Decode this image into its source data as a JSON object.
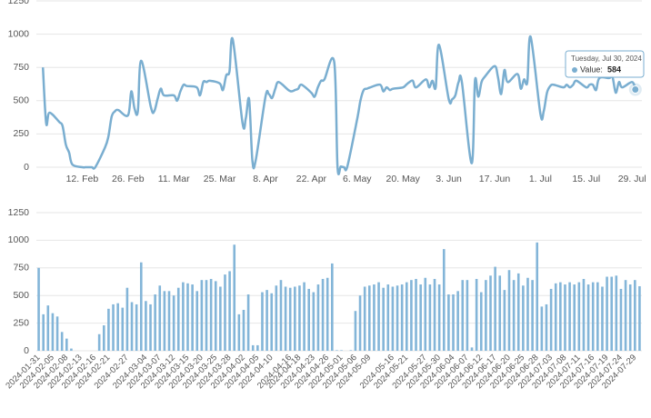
{
  "chart_data": [
    {
      "type": "line",
      "x": [
        "2024-01-31",
        "2024-02-01",
        "2024-02-02",
        "2024-02-05",
        "2024-02-06",
        "2024-02-07",
        "2024-02-08",
        "2024-02-09",
        "2024-02-12",
        "2024-02-13",
        "2024-02-14",
        "2024-02-15",
        "2024-02-16",
        "2024-02-19",
        "2024-02-20",
        "2024-02-21",
        "2024-02-22",
        "2024-02-23",
        "2024-02-26",
        "2024-02-27",
        "2024-02-28",
        "2024-02-29",
        "2024-03-01",
        "2024-03-04",
        "2024-03-05",
        "2024-03-06",
        "2024-03-07",
        "2024-03-08",
        "2024-03-11",
        "2024-03-12",
        "2024-03-13",
        "2024-03-14",
        "2024-03-15",
        "2024-03-18",
        "2024-03-19",
        "2024-03-20",
        "2024-03-21",
        "2024-03-22",
        "2024-03-25",
        "2024-03-26",
        "2024-03-27",
        "2024-03-28",
        "2024-03-29",
        "2024-04-01",
        "2024-04-02",
        "2024-04-03",
        "2024-04-04",
        "2024-04-05",
        "2024-04-08",
        "2024-04-09",
        "2024-04-10",
        "2024-04-11",
        "2024-04-12",
        "2024-04-15",
        "2024-04-16",
        "2024-04-17",
        "2024-04-18",
        "2024-04-19",
        "2024-04-22",
        "2024-04-23",
        "2024-04-24",
        "2024-04-25",
        "2024-04-26",
        "2024-04-29",
        "2024-04-30",
        "2024-05-01",
        "2024-05-02",
        "2024-05-03",
        "2024-05-06",
        "2024-05-07",
        "2024-05-08",
        "2024-05-09",
        "2024-05-10",
        "2024-05-13",
        "2024-05-14",
        "2024-05-15",
        "2024-05-16",
        "2024-05-17",
        "2024-05-20",
        "2024-05-21",
        "2024-05-22",
        "2024-05-23",
        "2024-05-24",
        "2024-05-27",
        "2024-05-28",
        "2024-05-29",
        "2024-05-30",
        "2024-05-31",
        "2024-06-03",
        "2024-06-04",
        "2024-06-05",
        "2024-06-06",
        "2024-06-07",
        "2024-06-10",
        "2024-06-11",
        "2024-06-12",
        "2024-06-13",
        "2024-06-14",
        "2024-06-17",
        "2024-06-18",
        "2024-06-19",
        "2024-06-20",
        "2024-06-21",
        "2024-06-24",
        "2024-06-25",
        "2024-06-26",
        "2024-06-27",
        "2024-06-28",
        "2024-07-01",
        "2024-07-02",
        "2024-07-03",
        "2024-07-04",
        "2024-07-05",
        "2024-07-08",
        "2024-07-09",
        "2024-07-10",
        "2024-07-11",
        "2024-07-12",
        "2024-07-15",
        "2024-07-16",
        "2024-07-17",
        "2024-07-18",
        "2024-07-19",
        "2024-07-22",
        "2024-07-23",
        "2024-07-24",
        "2024-07-25",
        "2024-07-26",
        "2024-07-29",
        "2024-07-30"
      ],
      "series": [
        {
          "name": "Value",
          "color": "#7aaed0",
          "values": [
            750,
            330,
            410,
            340,
            310,
            170,
            110,
            20,
            0,
            0,
            0,
            0,
            0,
            150,
            230,
            380,
            420,
            430,
            390,
            570,
            440,
            420,
            800,
            450,
            420,
            510,
            590,
            540,
            540,
            500,
            570,
            620,
            610,
            600,
            540,
            640,
            640,
            650,
            630,
            580,
            690,
            720,
            960,
            330,
            370,
            510,
            50,
            50,
            530,
            550,
            520,
            590,
            640,
            580,
            570,
            580,
            590,
            620,
            560,
            530,
            600,
            650,
            660,
            790,
            5,
            5,
            0,
            5,
            360,
            500,
            580,
            590,
            600,
            620,
            570,
            600,
            580,
            590,
            600,
            620,
            640,
            650,
            600,
            660,
            600,
            650,
            600,
            920,
            510,
            510,
            540,
            640,
            640,
            30,
            650,
            530,
            640,
            680,
            760,
            680,
            550,
            730,
            640,
            700,
            590,
            660,
            640,
            980,
            400,
            420,
            560,
            610,
            620,
            600,
            620,
            600,
            620,
            650,
            600,
            620,
            620,
            580,
            670,
            670,
            680,
            560,
            640,
            600,
            640,
            584
          ]
        }
      ],
      "xlim": [
        "2024-01-29",
        "2024-08-01"
      ],
      "xticks": [
        {
          "value": "2024-02-12",
          "label": "12. Feb"
        },
        {
          "value": "2024-02-26",
          "label": "26. Feb"
        },
        {
          "value": "2024-03-11",
          "label": "11. Mar"
        },
        {
          "value": "2024-03-25",
          "label": "25. Mar"
        },
        {
          "value": "2024-04-08",
          "label": "8. Apr"
        },
        {
          "value": "2024-04-22",
          "label": "22. Apr"
        },
        {
          "value": "2024-05-06",
          "label": "6. May"
        },
        {
          "value": "2024-05-20",
          "label": "20. May"
        },
        {
          "value": "2024-06-03",
          "label": "3. Jun"
        },
        {
          "value": "2024-06-17",
          "label": "17. Jun"
        },
        {
          "value": "2024-07-01",
          "label": "1. Jul"
        },
        {
          "value": "2024-07-15",
          "label": "15. Jul"
        },
        {
          "value": "2024-07-29",
          "label": "29. Jul"
        }
      ],
      "ylim": [
        0,
        1250
      ],
      "yticks": [
        0,
        250,
        500,
        750,
        1000,
        1250
      ],
      "grid": true,
      "tooltip": {
        "title": "Tuesday, Jul 30, 2024",
        "label": "Value:"
      }
    },
    {
      "type": "bar",
      "categories": [
        "2024-01-31",
        null,
        null,
        "2024-02-05",
        null,
        null,
        "2024-02-08",
        null,
        null,
        "2024-02-13",
        null,
        null,
        "2024-02-16",
        null,
        null,
        "2024-02-21",
        null,
        null,
        null,
        "2024-02-27",
        null,
        null,
        null,
        "2024-03-04",
        null,
        null,
        "2024-03-07",
        null,
        null,
        "2024-03-12",
        null,
        null,
        "2024-03-15",
        null,
        null,
        "2024-03-20",
        null,
        null,
        "2024-03-25",
        null,
        null,
        "2024-03-28",
        null,
        null,
        "2024-04-02",
        null,
        null,
        "2024-04-05",
        null,
        null,
        "2024-04-10",
        null,
        null,
        null,
        "2024-04-16",
        null,
        "2024-04-18",
        null,
        null,
        "2024-04-23",
        null,
        null,
        "2024-04-26",
        null,
        null,
        "2024-05-01",
        null,
        null,
        "2024-05-06",
        null,
        null,
        "2024-05-09",
        null,
        null,
        null,
        null,
        "2024-05-16",
        null,
        null,
        "2024-05-21",
        null,
        null,
        null,
        "2024-05-27",
        null,
        null,
        "2024-05-30",
        null,
        null,
        "2024-06-04",
        null,
        null,
        "2024-06-07",
        null,
        null,
        "2024-06-12",
        null,
        null,
        "2024-06-17",
        null,
        null,
        "2024-06-20",
        null,
        null,
        "2024-06-25",
        null,
        null,
        "2024-06-28",
        null,
        null,
        "2024-07-03",
        null,
        null,
        "2024-07-08",
        null,
        null,
        "2024-07-11",
        null,
        null,
        "2024-07-16",
        null,
        null,
        "2024-07-19",
        null,
        null,
        "2024-07-24",
        null,
        null,
        "2024-07-29",
        null
      ],
      "values": [
        750,
        330,
        410,
        340,
        310,
        170,
        110,
        20,
        0,
        0,
        0,
        0,
        0,
        150,
        230,
        380,
        420,
        430,
        390,
        570,
        440,
        420,
        800,
        450,
        420,
        510,
        590,
        540,
        540,
        500,
        570,
        620,
        610,
        600,
        540,
        640,
        640,
        650,
        630,
        580,
        690,
        720,
        960,
        330,
        370,
        510,
        50,
        50,
        530,
        550,
        520,
        590,
        640,
        580,
        570,
        580,
        590,
        620,
        560,
        530,
        600,
        650,
        660,
        790,
        5,
        5,
        0,
        5,
        360,
        500,
        580,
        590,
        600,
        620,
        570,
        600,
        580,
        590,
        600,
        620,
        640,
        650,
        600,
        660,
        600,
        650,
        600,
        920,
        510,
        510,
        540,
        640,
        640,
        30,
        650,
        530,
        640,
        680,
        760,
        680,
        550,
        730,
        640,
        700,
        590,
        660,
        640,
        980,
        400,
        420,
        560,
        610,
        620,
        600,
        620,
        600,
        620,
        650,
        600,
        620,
        620,
        580,
        670,
        670,
        680,
        560,
        640,
        600,
        640,
        584
      ],
      "color": "#83b5d8",
      "ylim": [
        0,
        1250
      ],
      "yticks": [
        0,
        250,
        500,
        750,
        1000,
        1250
      ],
      "grid": true
    }
  ]
}
